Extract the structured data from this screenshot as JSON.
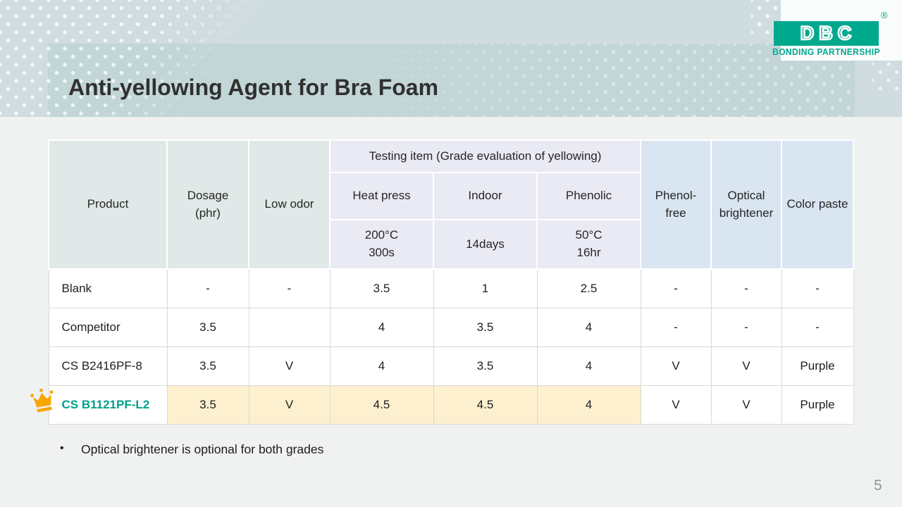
{
  "slide": {
    "title": "Anti-yellowing Agent for Bra Foam",
    "page_number": "5",
    "note_bullet": "•",
    "note": "Optical brightener is optional for both grades"
  },
  "logo": {
    "text": "DBC",
    "registered": "®",
    "subtext": "BONDING PARTNERSHIP"
  },
  "table": {
    "headers": {
      "product": "Product",
      "dosage": "Dosage\n(phr)",
      "low_odor": "Low odor",
      "testing_item": "Testing item (Grade evaluation of yellowing)",
      "sub": [
        "Heat press",
        "Indoor",
        "Phenolic"
      ],
      "sub2": [
        "200°C\n300s",
        "14days",
        "50°C\n16hr"
      ],
      "phenol_free": "Phenol-\nfree",
      "optical_brightener": "Optical\nbrightener",
      "color_paste": "Color paste"
    },
    "rows": [
      {
        "product": "Blank",
        "highlight": false,
        "crowned": false,
        "values": [
          "-",
          "-",
          "3.5",
          "1",
          "2.5",
          "-",
          "-",
          "-"
        ]
      },
      {
        "product": "Competitor",
        "highlight": false,
        "crowned": false,
        "values": [
          "3.5",
          "",
          "4",
          "3.5",
          "4",
          "-",
          "-",
          "-"
        ]
      },
      {
        "product": "CS B2416PF-8",
        "highlight": false,
        "crowned": false,
        "values": [
          "3.5",
          "V",
          "4",
          "3.5",
          "4",
          "V",
          "V",
          "Purple"
        ]
      },
      {
        "product": "CS B1121PF-L2",
        "highlight": true,
        "crowned": true,
        "values": [
          "3.5",
          "V",
          "4.5",
          "4.5",
          "4",
          "V",
          "V",
          "Purple"
        ]
      }
    ]
  },
  "colors": {
    "brand_teal": "#00a88e",
    "highlight_cream": "#fdf0ce",
    "crown_gold": "#f7a600",
    "header_green": "#e0e9e8",
    "header_lavender": "#e9eaf4",
    "header_blue": "#d9e5f1",
    "band_blue": "#cfdde0",
    "title_bar": "#c2d5d7"
  }
}
